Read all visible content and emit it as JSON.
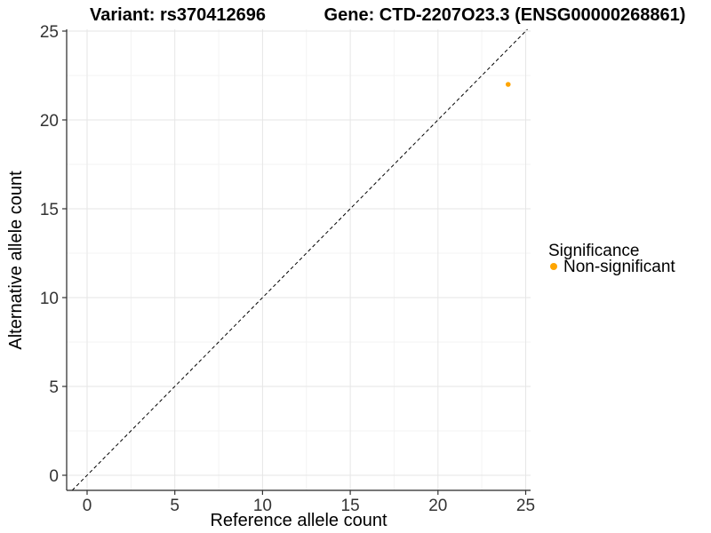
{
  "titles": {
    "variant": "Variant: rs370412696",
    "gene": "Gene: CTD-2207O23.3 (ENSG00000268861)"
  },
  "chart_data": {
    "type": "scatter",
    "xlabel": "Reference allele count",
    "ylabel": "Alternative allele count",
    "xlim": [
      0,
      25
    ],
    "ylim": [
      0,
      25
    ],
    "x_ticks": [
      0,
      5,
      10,
      15,
      20,
      25
    ],
    "y_ticks": [
      0,
      5,
      10,
      15,
      20,
      25
    ],
    "x_minor_ticks": [
      2.5,
      7.5,
      12.5,
      17.5,
      22.5
    ],
    "y_minor_ticks": [
      2.5,
      7.5,
      12.5,
      17.5,
      22.5
    ],
    "grid": true,
    "identity_line": {
      "slope": 1,
      "intercept": 0,
      "style": "dashed"
    },
    "series": [
      {
        "name": "Non-significant",
        "color": "#FFA500",
        "points": [
          {
            "x": 24,
            "y": 22
          }
        ]
      }
    ],
    "legend": {
      "title": "Significance",
      "position": "right",
      "items": [
        {
          "label": "Non-significant",
          "color": "#FFA500"
        }
      ]
    }
  },
  "colors": {
    "point": "#FFA500",
    "grid_major": "#e6e6e6",
    "grid_minor": "#f3f3f3",
    "axis_line": "#262626",
    "tick_mark": "#333333",
    "identity_line": "#000000"
  }
}
